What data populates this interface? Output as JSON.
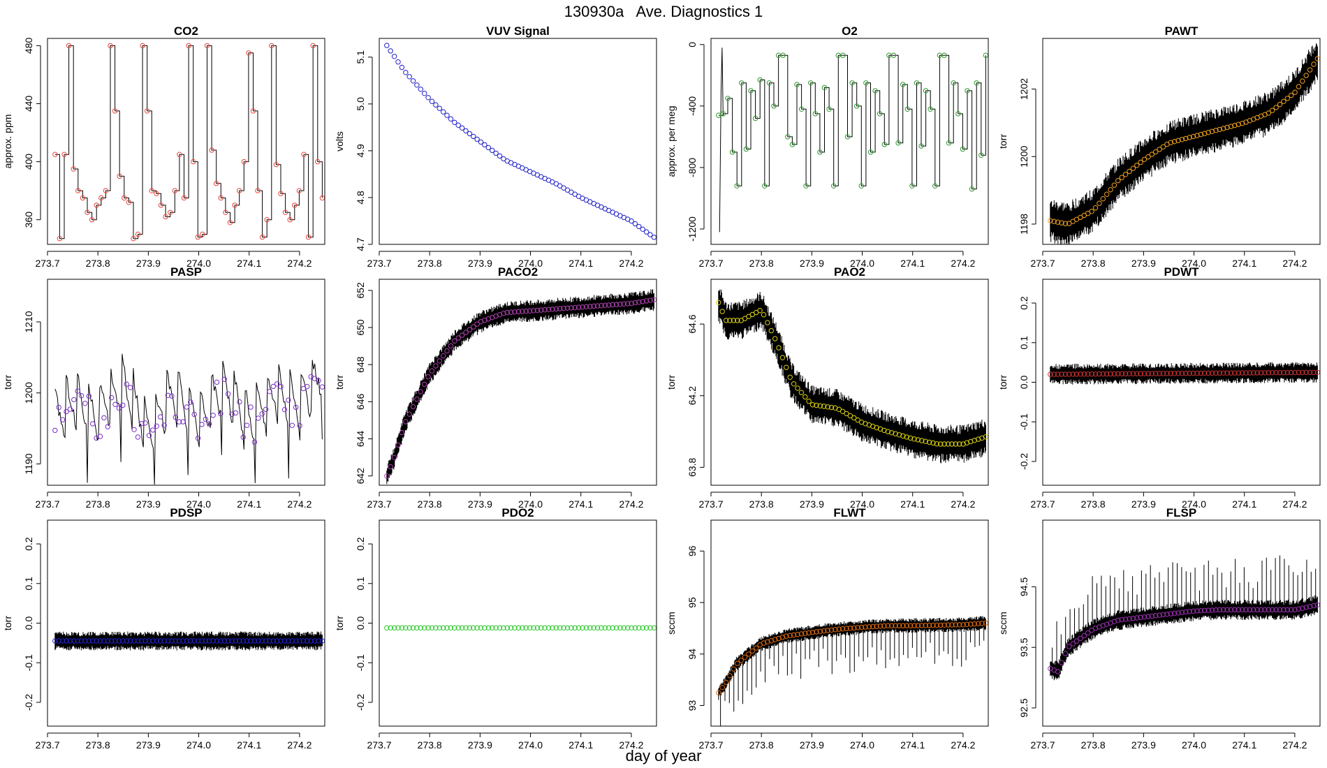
{
  "figure": {
    "title": "130930a   Ave. Diagnostics 1",
    "xlabel": "day of year"
  },
  "chart_data": [
    {
      "id": "co2",
      "type": "line",
      "title": "CO2",
      "ylabel": "approx. ppm",
      "xlim": [
        273.7,
        274.25
      ],
      "ylim": [
        343,
        485
      ],
      "xticks": [
        "273.7",
        "273.8",
        "273.9",
        "274.0",
        "274.1",
        "274.2"
      ],
      "yticks": [
        "360",
        "400",
        "440",
        "480"
      ],
      "marker_color": "#e8453c",
      "style": "cycle",
      "trace": "#000000",
      "series_values": [
        405,
        347,
        405,
        480,
        395,
        380,
        375,
        365,
        360,
        370,
        375,
        380,
        480,
        435,
        390,
        375,
        372,
        347,
        350,
        480,
        435,
        380,
        378,
        370,
        362,
        365,
        380,
        405,
        375,
        480,
        400,
        348,
        350,
        480,
        408,
        385,
        375,
        365,
        358,
        370,
        380,
        400,
        475,
        435,
        380,
        348,
        360,
        480,
        398,
        378,
        365,
        360,
        370,
        380,
        405,
        348,
        480,
        400,
        375
      ]
    },
    {
      "id": "vuv",
      "type": "line",
      "title": "VUV Signal",
      "ylabel": "volts",
      "xlim": [
        273.7,
        274.25
      ],
      "ylim": [
        4.7,
        5.14
      ],
      "xticks": [
        "273.7",
        "273.8",
        "273.9",
        "274.0",
        "274.1",
        "274.2"
      ],
      "yticks": [
        "4.7",
        "4.8",
        "4.9",
        "5.0",
        "5.1"
      ],
      "marker_color": "#2020c8",
      "style": "smooth",
      "x": [
        273.715,
        273.75,
        273.8,
        273.85,
        273.9,
        273.95,
        274.0,
        274.05,
        274.1,
        274.15,
        274.2,
        274.245
      ],
      "y": [
        5.125,
        5.07,
        5.01,
        4.96,
        4.92,
        4.88,
        4.855,
        4.83,
        4.8,
        4.775,
        4.75,
        4.715
      ]
    },
    {
      "id": "o2",
      "type": "line",
      "title": "O2",
      "ylabel": "approx. per meg",
      "xlim": [
        273.7,
        274.25
      ],
      "ylim": [
        -1300,
        40
      ],
      "xticks": [
        "273.7",
        "273.8",
        "273.9",
        "274.0",
        "274.1",
        "274.2"
      ],
      "yticks": [
        "-1200",
        "-800",
        "-400",
        "0"
      ],
      "marker_color": "#2e9a2e",
      "style": "cycle",
      "trace": "#000000",
      "series_values": [
        -460,
        -450,
        -350,
        -700,
        -920,
        -250,
        -680,
        -300,
        -480,
        -230,
        -920,
        -250,
        -400,
        -70,
        -70,
        -600,
        -650,
        -260,
        -420,
        -920,
        -250,
        -450,
        -700,
        -280,
        -420,
        -920,
        -70,
        -70,
        -600,
        -250,
        -400,
        -920,
        -250,
        -700,
        -300,
        -450,
        -650,
        -70,
        -70,
        -640,
        -260,
        -420,
        -920,
        -250,
        -660,
        -300,
        -420,
        -920,
        -70,
        -70,
        -640,
        -250,
        -450,
        -680,
        -300,
        -940,
        -250,
        -720,
        -70
      ]
    },
    {
      "id": "pawt",
      "type": "line",
      "title": "PAWT",
      "ylabel": "torr",
      "xlim": [
        273.7,
        274.25
      ],
      "ylim": [
        1197.4,
        1203.5
      ],
      "xticks": [
        "273.7",
        "273.8",
        "273.9",
        "274.0",
        "274.1",
        "274.2"
      ],
      "yticks": [
        "1198",
        "1200",
        "1202"
      ],
      "marker_color": "#f0a020",
      "style": "noisy",
      "noise": 0.55,
      "spikes": 0,
      "x": [
        273.715,
        273.75,
        273.8,
        273.85,
        273.9,
        273.95,
        274.0,
        274.05,
        274.1,
        274.15,
        274.2,
        274.245
      ],
      "y": [
        1198.1,
        1198.0,
        1198.4,
        1199.3,
        1199.9,
        1200.4,
        1200.6,
        1200.8,
        1201.0,
        1201.3,
        1201.9,
        1202.9
      ]
    },
    {
      "id": "pasp",
      "type": "line",
      "title": "PASP",
      "ylabel": "torr",
      "xlim": [
        273.7,
        274.25
      ],
      "ylim": [
        1187,
        1216
      ],
      "xticks": [
        "273.7",
        "273.8",
        "273.9",
        "274.0",
        "274.1",
        "274.2"
      ],
      "yticks": [
        "1190",
        "1200",
        "1210"
      ],
      "marker_color": "#7a2ec8",
      "style": "sawtooth",
      "trace": "#000000",
      "x": [
        273.715,
        273.75,
        273.8,
        273.85,
        273.9,
        273.95,
        274.0,
        274.05,
        274.1,
        274.15,
        274.2,
        274.245
      ],
      "y": [
        1195,
        1198,
        1196,
        1200,
        1194,
        1199,
        1195,
        1200,
        1195,
        1199,
        1197,
        1202
      ]
    },
    {
      "id": "paco2",
      "type": "line",
      "title": "PACO2",
      "ylabel": "torr",
      "xlim": [
        273.7,
        274.25
      ],
      "ylim": [
        641.5,
        652.6
      ],
      "xticks": [
        "273.7",
        "273.8",
        "273.9",
        "274.0",
        "274.1",
        "274.2"
      ],
      "yticks": [
        "642",
        "644",
        "646",
        "648",
        "650",
        "652"
      ],
      "marker_color": "#b040b0",
      "style": "noisy",
      "noise": 0.5,
      "spikes": 0,
      "x": [
        273.715,
        273.73,
        273.75,
        273.8,
        273.85,
        273.9,
        273.95,
        274.0,
        274.05,
        274.1,
        274.15,
        274.2,
        274.245
      ],
      "y": [
        642.0,
        643.0,
        644.8,
        647.5,
        649.3,
        650.3,
        650.8,
        650.9,
        651.0,
        651.1,
        651.2,
        651.3,
        651.5
      ]
    },
    {
      "id": "pao2",
      "type": "line",
      "title": "PAO2",
      "ylabel": "torr",
      "xlim": [
        273.7,
        274.25
      ],
      "ylim": [
        63.7,
        64.85
      ],
      "xticks": [
        "273.7",
        "273.8",
        "273.9",
        "274.0",
        "274.1",
        "274.2"
      ],
      "yticks": [
        "63.8",
        "64.2",
        "64.6"
      ],
      "marker_color": "#d8d010",
      "style": "noisy",
      "noise": 0.09,
      "spikes": 0,
      "x": [
        273.715,
        273.73,
        273.76,
        273.8,
        273.83,
        273.86,
        273.9,
        273.95,
        274.0,
        274.05,
        274.1,
        274.15,
        274.2,
        274.245
      ],
      "y": [
        64.72,
        64.62,
        64.62,
        64.68,
        64.5,
        64.28,
        64.15,
        64.13,
        64.05,
        64.0,
        63.96,
        63.93,
        63.93,
        63.97
      ]
    },
    {
      "id": "pdwt",
      "type": "line",
      "title": "PDWT",
      "ylabel": "torr",
      "xlim": [
        273.7,
        274.25
      ],
      "ylim": [
        -0.26,
        0.26
      ],
      "xticks": [
        "273.7",
        "273.8",
        "273.9",
        "274.0",
        "274.1",
        "274.2"
      ],
      "yticks": [
        "-0.2",
        "-0.1",
        "0.0",
        "0.1",
        "0.2"
      ],
      "marker_color": "#c83232",
      "style": "noisy",
      "noise": 0.022,
      "spikes": 0,
      "x": [
        273.715,
        274.245
      ],
      "y": [
        0.02,
        0.025
      ]
    },
    {
      "id": "pdsp",
      "type": "line",
      "title": "PDSP",
      "ylabel": "torr",
      "xlim": [
        273.7,
        274.25
      ],
      "ylim": [
        -0.26,
        0.26
      ],
      "xticks": [
        "273.7",
        "273.8",
        "273.9",
        "274.0",
        "274.1",
        "274.2"
      ],
      "yticks": [
        "-0.2",
        "-0.1",
        "0.0",
        "0.1",
        "0.2"
      ],
      "marker_color": "#2020c8",
      "style": "noisy",
      "noise": 0.02,
      "spikes": 0,
      "x": [
        273.715,
        274.245
      ],
      "y": [
        -0.045,
        -0.045
      ]
    },
    {
      "id": "pdo2",
      "type": "line",
      "title": "PDO2",
      "ylabel": "torr",
      "xlim": [
        273.7,
        274.25
      ],
      "ylim": [
        -0.26,
        0.26
      ],
      "xticks": [
        "273.7",
        "273.8",
        "273.9",
        "274.0",
        "274.1",
        "274.2"
      ],
      "yticks": [
        "-0.2",
        "-0.1",
        "0.0",
        "0.1",
        "0.2"
      ],
      "marker_color": "#30c830",
      "style": "flat",
      "x": [
        273.715,
        274.245
      ],
      "y": [
        -0.012,
        -0.012
      ]
    },
    {
      "id": "flwt",
      "type": "line",
      "title": "FLWT",
      "ylabel": "sccm",
      "xlim": [
        273.7,
        274.25
      ],
      "ylim": [
        92.6,
        96.6
      ],
      "xticks": [
        "273.7",
        "273.8",
        "273.9",
        "274.0",
        "274.1",
        "274.2"
      ],
      "yticks": [
        "93",
        "94",
        "95",
        "96"
      ],
      "marker_color": "#e06c10",
      "style": "noisy",
      "noise": 0.12,
      "spikes": -0.6,
      "x": [
        273.715,
        273.73,
        273.75,
        273.8,
        273.85,
        273.9,
        273.95,
        274.0,
        274.05,
        274.1,
        274.15,
        274.2,
        274.245
      ],
      "y": [
        93.25,
        93.45,
        93.8,
        94.2,
        94.35,
        94.42,
        94.48,
        94.52,
        94.55,
        94.55,
        94.56,
        94.57,
        94.6
      ]
    },
    {
      "id": "flsp",
      "type": "line",
      "title": "FLSP",
      "ylabel": "sccm",
      "xlim": [
        273.7,
        274.25
      ],
      "ylim": [
        92.2,
        95.6
      ],
      "xticks": [
        "273.7",
        "273.8",
        "273.9",
        "274.0",
        "274.1",
        "274.2"
      ],
      "yticks": [
        "92.5",
        "93.5",
        "94.5"
      ],
      "marker_color": "#9a30b0",
      "style": "noisy",
      "noise": 0.14,
      "spikes": 0.6,
      "x": [
        273.715,
        273.73,
        273.75,
        273.8,
        273.85,
        273.9,
        273.95,
        274.0,
        274.05,
        274.1,
        274.15,
        274.2,
        274.245
      ],
      "y": [
        93.15,
        93.1,
        93.5,
        93.8,
        93.95,
        94.0,
        94.05,
        94.1,
        94.12,
        94.12,
        94.12,
        94.12,
        94.2
      ]
    }
  ]
}
